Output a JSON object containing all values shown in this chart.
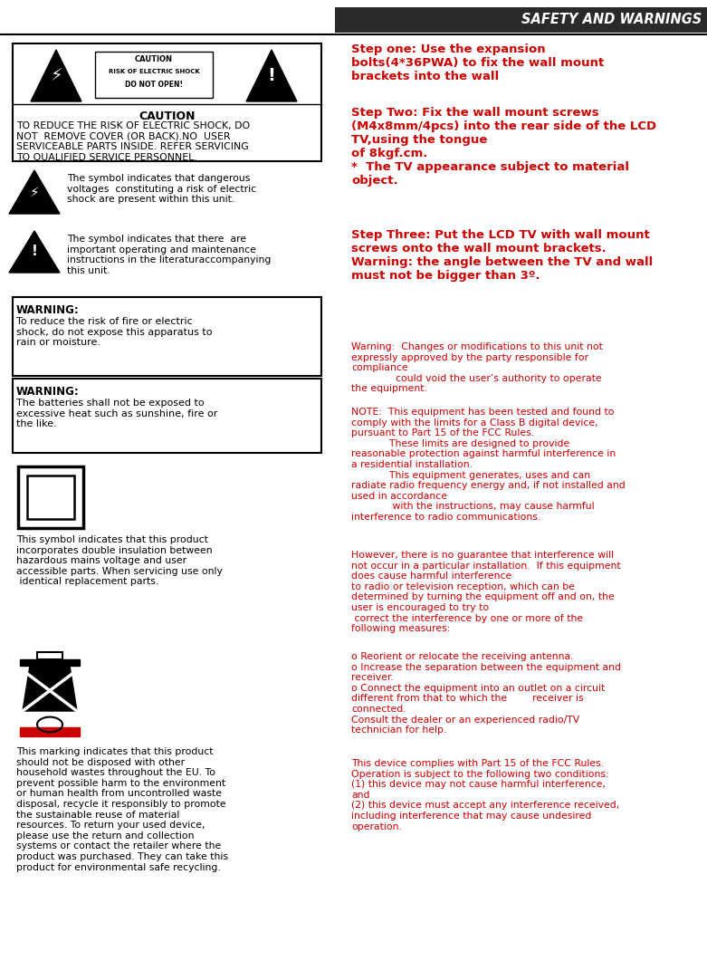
{
  "title": "SAFETY AND WARNINGS",
  "bg_color": "#ffffff",
  "red_color": "#cc0000",
  "black_color": "#000000",
  "step1_text": "Step one: Use the expansion\nbolts(4*36PWA) to fix the wall mount\nbrackets into the wall",
  "step2_text": "Step Two: Fix the wall mount screws\n(M4x8mm/4pcs) into the rear side of the LCD\nTV,using the tongue\nof 8kgf.cm.\n*  The TV appearance subject to material\nobject.",
  "step3_text": "Step Three: Put the LCD TV with wall mount\nscrews onto the wall mount brackets.\nWarning: the angle between the TV and wall\nmust not be bigger than 3º.",
  "symbol1_text": "The symbol indicates that dangerous\nvoltages  constituting a risk of electric\nshock are present within this unit.",
  "symbol2_text": "The symbol indicates that there  are\nimportant operating and maintenance\ninstructions in the literaturaccompanying\nthis unit.",
  "warning1_title": "WARNING:",
  "warning1_text": "To reduce the risk of fire or electric\nshock, do not expose this apparatus to\nrain or moisture.",
  "warning2_title": "WARNING:",
  "warning2_text": "The batteries shall not be exposed to\nexcessive heat such as sunshine, fire or\nthe like.",
  "double_insulation_text": "This symbol indicates that this product\nincorporates double insulation between\nhazardous mains voltage and user\naccessible parts. When servicing use only\n identical replacement parts.",
  "recycle_text": "This marking indicates that this product\nshould not be disposed with other\nhousehold wastes throughout the EU. To\nprevent possible harm to the environment\nor human health from uncontrolled waste\ndisposal, recycle it responsibly to promote\nthe sustainable reuse of material\nresources. To return your used device,\nplease use the return and collection\nsystems or contact the retailer where the\nproduct was purchased. They can take this\nproduct for environmental safe recycling.",
  "fcc_warning_text": "Warning:  Changes or modifications to this unit not\nexpressly approved by the party responsible for\ncompliance\n              could void the user’s authority to operate\nthe equipment.",
  "fcc_note_text": "NOTE:  This equipment has been tested and found to\ncomply with the limits for a Class B digital device,\npursuant to Part 15 of the FCC Rules.\n            These limits are designed to provide\nreasonable protection against harmful interference in\na residential installation.\n            This equipment generates, uses and can\nradiate radio frequency energy and, if not installed and\nused in accordance\n             with the instructions, may cause harmful\ninterference to radio communications.",
  "fcc_however_text": "However, there is no guarantee that interference will\nnot occur in a particular installation.  If this equipment\ndoes cause harmful interference\nto radio or television reception, which can be\ndetermined by turning the equipment off and on, the\nuser is encouraged to try to\n correct the interference by one or more of the\nfollowing measures:",
  "fcc_measures_text": "o Reorient or relocate the receiving antenna.\no Increase the separation between the equipment and\nreceiver.\no Connect the equipment into an outlet on a circuit\ndifferent from that to which the        receiver is\nconnected.\nConsult the dealer or an experienced radio/TV\ntechnician for help.",
  "fcc_device_text": "This device complies with Part 15 of the FCC Rules.\nOperation is subject to the following two conditions:\n(1) this device may not cause harmful interference,\nand\n(2) this device must accept any interference received,\nincluding interference that may cause undesired\noperation."
}
